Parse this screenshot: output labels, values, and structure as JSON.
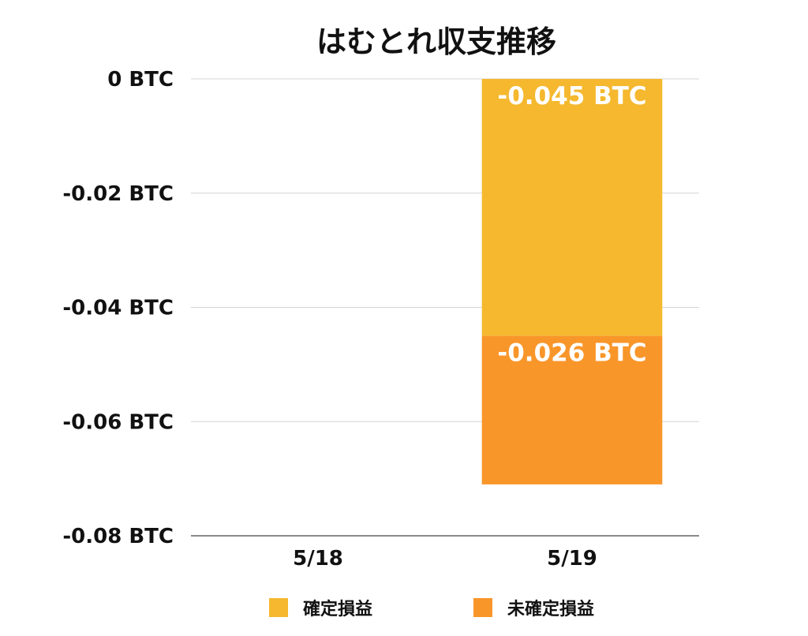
{
  "chart_data": {
    "type": "bar",
    "stacked": true,
    "title": "はむとれ収支推移",
    "categories": [
      "5/18",
      "5/19"
    ],
    "series": [
      {
        "name": "確定損益",
        "values": [
          0,
          -0.045
        ],
        "labels": [
          "",
          "-0.045 BTC"
        ],
        "color": "#F5B82E"
      },
      {
        "name": "未確定損益",
        "values": [
          0,
          -0.026
        ],
        "labels": [
          "",
          "-0.026 BTC"
        ],
        "color": "#F9962A"
      }
    ],
    "ylim": [
      -0.08,
      0
    ],
    "yticks": [
      0,
      -0.02,
      -0.04,
      -0.06,
      -0.08
    ],
    "ytick_labels": [
      "0 BTC",
      "-0.02 BTC",
      "-0.04 BTC",
      "-0.06 BTC",
      "-0.08 BTC"
    ],
    "grid": true,
    "legend_position": "bottom"
  }
}
